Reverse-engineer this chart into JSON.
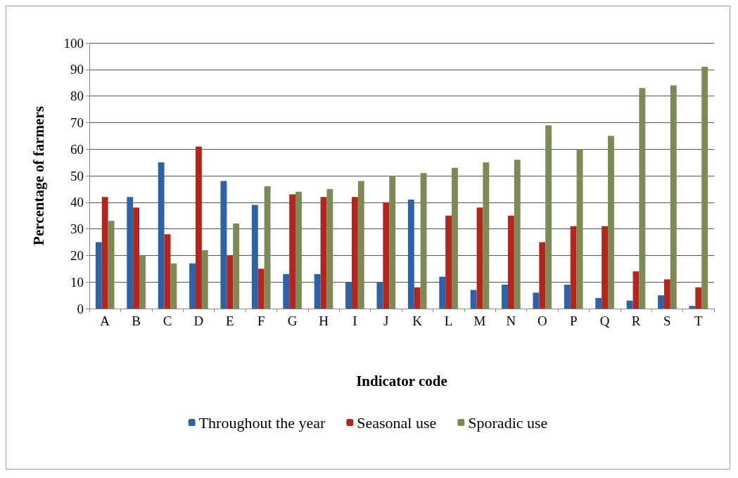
{
  "chart_data": {
    "type": "bar",
    "xlabel": "Indicator code",
    "ylabel": "Percentage of farmers",
    "categories": [
      "A",
      "B",
      "C",
      "D",
      "E",
      "F",
      "G",
      "H",
      "I",
      "J",
      "K",
      "L",
      "M",
      "N",
      "O",
      "P",
      "Q",
      "R",
      "S",
      "T"
    ],
    "series": [
      {
        "name": "Throughout the year",
        "color": "#2e62a8",
        "values": [
          25,
          42,
          55,
          17,
          48,
          39,
          13,
          13,
          10,
          10,
          41,
          12,
          7,
          9,
          6,
          9,
          4,
          3,
          5,
          1
        ]
      },
      {
        "name": "Seasonal use",
        "color": "#b3261e",
        "values": [
          42,
          38,
          28,
          61,
          20,
          15,
          43,
          42,
          42,
          40,
          8,
          35,
          38,
          35,
          25,
          31,
          31,
          14,
          11,
          8
        ]
      },
      {
        "name": "Sporadic use",
        "color": "#7c8a55",
        "values": [
          33,
          20,
          17,
          22,
          32,
          46,
          44,
          45,
          48,
          50,
          51,
          53,
          55,
          56,
          69,
          60,
          65,
          83,
          84,
          91
        ]
      }
    ],
    "ylim": [
      0,
      100
    ],
    "yticks": [
      0,
      10,
      20,
      30,
      40,
      50,
      60,
      70,
      80,
      90,
      100
    ],
    "grid": "y",
    "legend": "bottom"
  }
}
